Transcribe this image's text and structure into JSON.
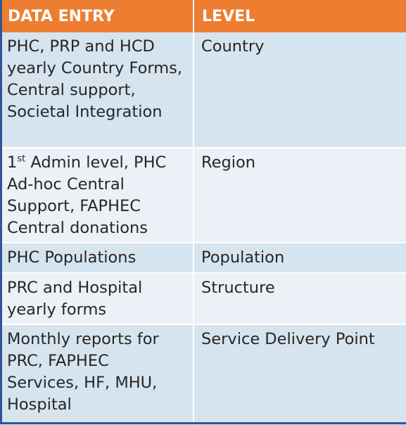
{
  "table": {
    "headers": [
      "DATA ENTRY",
      "LEVEL"
    ],
    "rows": [
      {
        "entry": "PHC, PRP and HCD yearly Country Forms, Central support, Societal Integration",
        "level": "Country"
      },
      {
        "entry_prefix": "1",
        "entry_sup": "st",
        "entry_rest": " Admin level, PHC Ad-hoc Central Support, FAPHEC Central donations",
        "level": "Region"
      },
      {
        "entry": "PHC Populations",
        "level": "Population"
      },
      {
        "entry": "PRC and Hospital yearly forms",
        "level": "Structure"
      },
      {
        "entry": "Monthly reports for PRC, FAPHEC Services, HF, MHU, Hospital",
        "level": "Service Delivery Point"
      }
    ]
  },
  "colors": {
    "header_bg": "#ed7d31",
    "row_dark": "#d6e4ef",
    "row_light": "#ebf1f7",
    "frame_edge": "#2f5597"
  }
}
